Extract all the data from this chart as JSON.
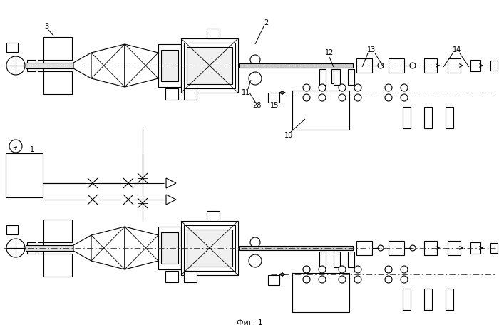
{
  "title": "Фиг. 1",
  "bg_color": "#ffffff"
}
